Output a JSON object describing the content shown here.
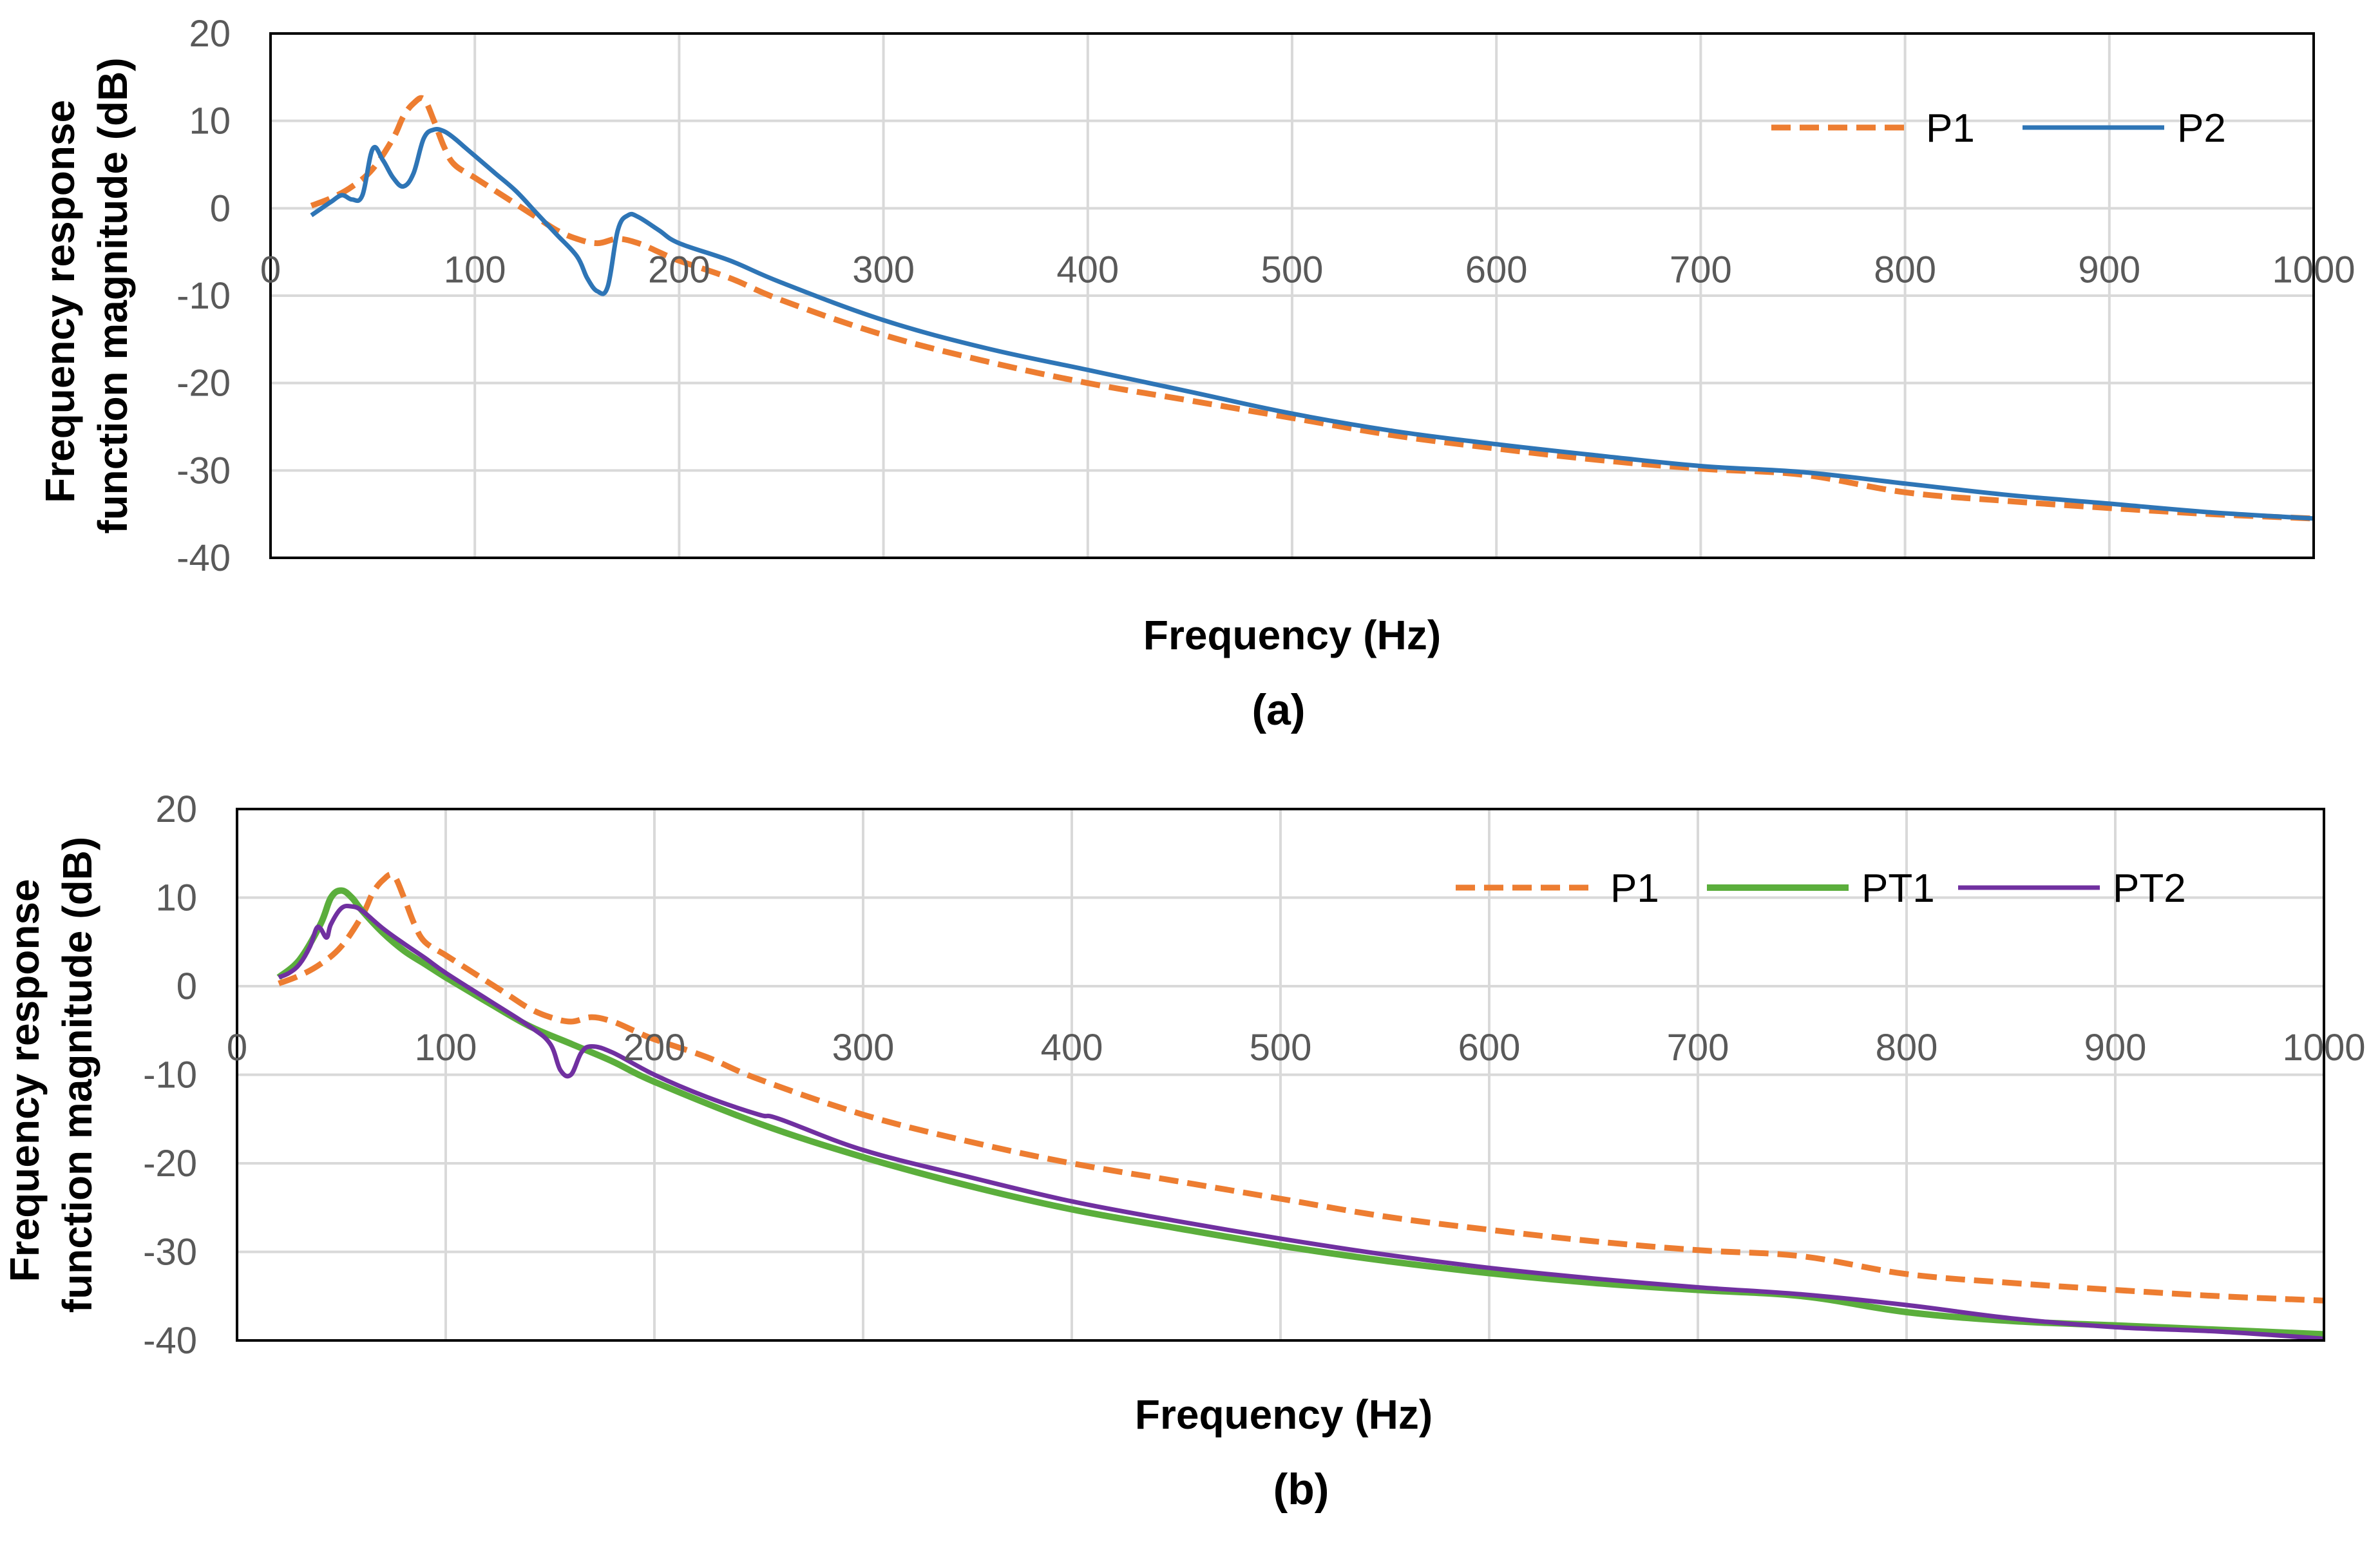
{
  "figure": {
    "colors": {
      "P1": "#ED7D31",
      "P2": "#2E75B6",
      "PT1": "#5BAE3C",
      "PT2": "#7030A0",
      "grid": "#D9D9D9",
      "frame": "#000000"
    }
  },
  "chart_data": [
    {
      "id": "a",
      "type": "line",
      "panel_label": "(a)",
      "title": "",
      "xlabel": "Frequency (Hz)",
      "ylabel_lines": [
        "Frequency response",
        "function magnitude (dB)"
      ],
      "xlim": [
        0,
        1000
      ],
      "ylim": [
        -40,
        20
      ],
      "xticks": [
        0,
        100,
        200,
        300,
        400,
        500,
        600,
        700,
        800,
        900,
        1000
      ],
      "yticks": [
        20,
        10,
        0,
        -10,
        -20,
        -30,
        -40
      ],
      "xtick_labels": [
        "0",
        "100",
        "200",
        "300",
        "400",
        "500",
        "600",
        "700",
        "800",
        "900",
        "1000"
      ],
      "ytick_labels": [
        "20",
        "10",
        "0",
        "-10",
        "-20",
        "-30",
        "-40"
      ],
      "grid": true,
      "legend_position": "top-right",
      "series": [
        {
          "name": "P1",
          "style": "dashed",
          "x": [
            20,
            30,
            40,
            50,
            60,
            65,
            70,
            75,
            80,
            85,
            90,
            100,
            110,
            120,
            130,
            140,
            150,
            160,
            170,
            180,
            190,
            200,
            225,
            250,
            300,
            350,
            400,
            450,
            500,
            550,
            600,
            650,
            700,
            750,
            800,
            850,
            900,
            950,
            1000
          ],
          "y": [
            0.3,
            1.2,
            2.5,
            4.5,
            8.0,
            10.5,
            12.0,
            12.5,
            10.0,
            7.0,
            5.0,
            3.5,
            2.0,
            0.5,
            -1.0,
            -2.5,
            -3.5,
            -4.0,
            -3.5,
            -4.0,
            -5.0,
            -6.0,
            -8.0,
            -10.5,
            -14.5,
            -17.5,
            -20.0,
            -22.0,
            -24.0,
            -26.0,
            -27.5,
            -28.8,
            -29.8,
            -30.5,
            -32.5,
            -33.5,
            -34.3,
            -35.0,
            -35.5
          ]
        },
        {
          "name": "P2",
          "style": "solid",
          "x": [
            20,
            25,
            30,
            35,
            40,
            45,
            50,
            55,
            60,
            65,
            70,
            75,
            80,
            85,
            90,
            95,
            100,
            110,
            120,
            130,
            140,
            150,
            155,
            160,
            165,
            170,
            175,
            180,
            190,
            200,
            225,
            250,
            300,
            350,
            400,
            450,
            500,
            550,
            600,
            650,
            700,
            750,
            800,
            850,
            900,
            950,
            1000
          ],
          "y": [
            -0.8,
            0.0,
            0.8,
            1.5,
            1.0,
            1.5,
            6.8,
            5.5,
            3.5,
            2.5,
            4.0,
            8.0,
            9.0,
            8.8,
            8.0,
            7.0,
            6.0,
            4.0,
            2.0,
            -0.5,
            -3.0,
            -5.5,
            -8.0,
            -9.5,
            -9.0,
            -2.5,
            -0.8,
            -1.0,
            -2.5,
            -4.0,
            -6.0,
            -8.5,
            -12.8,
            -16.0,
            -18.5,
            -21.0,
            -23.5,
            -25.5,
            -27.0,
            -28.3,
            -29.5,
            -30.2,
            -31.5,
            -32.8,
            -33.8,
            -34.8,
            -35.5
          ]
        }
      ]
    },
    {
      "id": "b",
      "type": "line",
      "panel_label": "(b)",
      "title": "",
      "xlabel": "Frequency (Hz)",
      "ylabel_lines": [
        "Frequency response",
        "function magnitude (dB)"
      ],
      "xlim": [
        0,
        1000
      ],
      "ylim": [
        -40,
        20
      ],
      "xticks": [
        0,
        100,
        200,
        300,
        400,
        500,
        600,
        700,
        800,
        900,
        1000
      ],
      "yticks": [
        20,
        10,
        0,
        -10,
        -20,
        -30,
        -40
      ],
      "xtick_labels": [
        "0",
        "100",
        "200",
        "300",
        "400",
        "500",
        "600",
        "700",
        "800",
        "900",
        "1000"
      ],
      "ytick_labels": [
        "20",
        "10",
        "0",
        "-10",
        "-20",
        "-30",
        "-40"
      ],
      "grid": true,
      "legend_position": "top-right",
      "series": [
        {
          "name": "P1",
          "style": "dashed",
          "x": [
            20,
            30,
            40,
            50,
            60,
            65,
            70,
            75,
            80,
            85,
            90,
            100,
            110,
            120,
            130,
            140,
            150,
            160,
            170,
            180,
            190,
            200,
            225,
            250,
            300,
            350,
            400,
            450,
            500,
            550,
            600,
            650,
            700,
            750,
            800,
            850,
            900,
            950,
            1000
          ],
          "y": [
            0.3,
            1.2,
            2.5,
            4.5,
            8.0,
            10.5,
            12.0,
            12.5,
            10.0,
            7.0,
            5.0,
            3.5,
            2.0,
            0.5,
            -1.0,
            -2.5,
            -3.5,
            -4.0,
            -3.5,
            -4.0,
            -5.0,
            -6.0,
            -8.0,
            -10.5,
            -14.5,
            -17.5,
            -20.0,
            -22.0,
            -24.0,
            -26.0,
            -27.5,
            -28.8,
            -29.8,
            -30.5,
            -32.5,
            -33.5,
            -34.3,
            -35.0,
            -35.5
          ]
        },
        {
          "name": "PT1",
          "style": "solid-thick",
          "x": [
            20,
            30,
            40,
            45,
            50,
            55,
            60,
            70,
            80,
            90,
            100,
            120,
            140,
            160,
            180,
            200,
            250,
            300,
            350,
            400,
            450,
            500,
            550,
            600,
            650,
            700,
            750,
            800,
            850,
            900,
            950,
            1000
          ],
          "y": [
            1.0,
            3.0,
            7.0,
            10.0,
            10.8,
            10.0,
            8.5,
            6.0,
            4.0,
            2.5,
            1.0,
            -1.8,
            -4.5,
            -6.5,
            -8.5,
            -10.8,
            -15.5,
            -19.3,
            -22.5,
            -25.2,
            -27.3,
            -29.3,
            -31.0,
            -32.4,
            -33.5,
            -34.3,
            -35.0,
            -36.8,
            -37.8,
            -38.3,
            -38.8,
            -39.3
          ]
        },
        {
          "name": "PT2",
          "style": "solid",
          "x": [
            20,
            25,
            30,
            35,
            38,
            40,
            43,
            45,
            50,
            55,
            60,
            70,
            80,
            90,
            100,
            120,
            140,
            150,
            155,
            160,
            165,
            170,
            180,
            200,
            225,
            250,
            260,
            300,
            350,
            400,
            450,
            500,
            550,
            600,
            650,
            700,
            750,
            800,
            850,
            900,
            950,
            1000
          ],
          "y": [
            1.0,
            1.5,
            2.5,
            4.5,
            6.5,
            6.5,
            5.5,
            7.0,
            8.8,
            9.0,
            8.5,
            6.5,
            4.8,
            3.2,
            1.5,
            -1.5,
            -4.5,
            -6.5,
            -9.5,
            -10.0,
            -7.5,
            -6.8,
            -7.5,
            -10.0,
            -12.5,
            -14.5,
            -15.0,
            -18.5,
            -21.5,
            -24.3,
            -26.5,
            -28.5,
            -30.3,
            -31.8,
            -33.0,
            -34.0,
            -34.8,
            -36.0,
            -37.5,
            -38.5,
            -39.0,
            -39.8
          ]
        }
      ]
    }
  ]
}
